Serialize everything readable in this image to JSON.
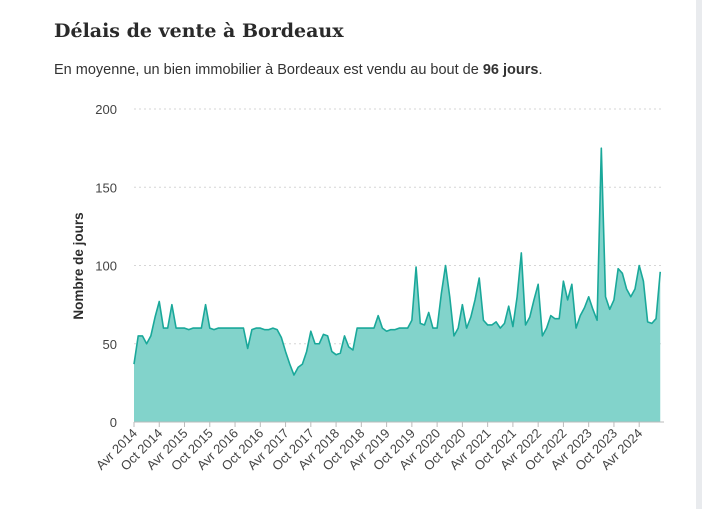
{
  "header": {
    "title": "Délais de vente à Bordeaux",
    "subtitle_prefix": "En moyenne, un bien immobilier à Bordeaux est vendu au bout de ",
    "subtitle_value": "96 jours",
    "subtitle_suffix": "."
  },
  "colors": {
    "area_fill": "#82d3cb",
    "line": "#1aa89a",
    "grid": "#d6d6d6",
    "axis": "#bbbbbb"
  },
  "chart_data": {
    "type": "area",
    "title": "Délais de vente à Bordeaux",
    "xlabel": "",
    "ylabel": "Nombre de jours",
    "ylim": [
      0,
      200
    ],
    "yticks": [
      0,
      50,
      100,
      150,
      200
    ],
    "grid": true,
    "x_start": "2014-04",
    "x_ticks": [
      "Avr 2014",
      "Oct 2014",
      "Avr 2015",
      "Oct 2015",
      "Avr 2016",
      "Oct 2016",
      "Avr 2017",
      "Oct 2017",
      "Avr 2018",
      "Oct 2018",
      "Avr 2019",
      "Oct 2019",
      "Avr 2020",
      "Oct 2020",
      "Avr 2021",
      "Oct 2021",
      "Avr 2022",
      "Oct 2022",
      "Avr 2023",
      "Oct 2023",
      "Avr 2024"
    ],
    "series": [
      {
        "values": [
          37,
          55,
          55,
          50,
          55,
          67,
          77,
          60,
          60,
          75,
          60,
          60,
          60,
          59,
          60,
          60,
          60,
          75,
          60,
          59,
          60,
          60,
          60,
          60,
          60,
          60,
          60,
          47,
          59,
          60,
          60,
          59,
          59,
          60,
          59,
          54,
          45,
          37,
          30,
          35,
          37,
          45,
          58,
          50,
          50,
          56,
          55,
          45,
          43,
          44,
          55,
          48,
          46,
          60,
          60,
          60,
          60,
          60,
          68,
          60,
          58,
          59,
          59,
          60,
          60,
          60,
          65,
          99,
          63,
          62,
          70,
          60,
          60,
          82,
          100,
          80,
          55,
          60,
          75,
          60,
          67,
          78,
          92,
          65,
          62,
          62,
          64,
          60,
          63,
          74,
          61,
          80,
          108,
          62,
          67,
          78,
          88,
          55,
          60,
          68,
          66,
          66,
          90,
          78,
          88,
          60,
          68,
          73,
          80,
          72,
          65,
          175,
          80,
          72,
          78,
          98,
          95,
          85,
          80,
          85,
          100,
          90,
          64,
          63,
          66,
          96
        ]
      }
    ]
  }
}
